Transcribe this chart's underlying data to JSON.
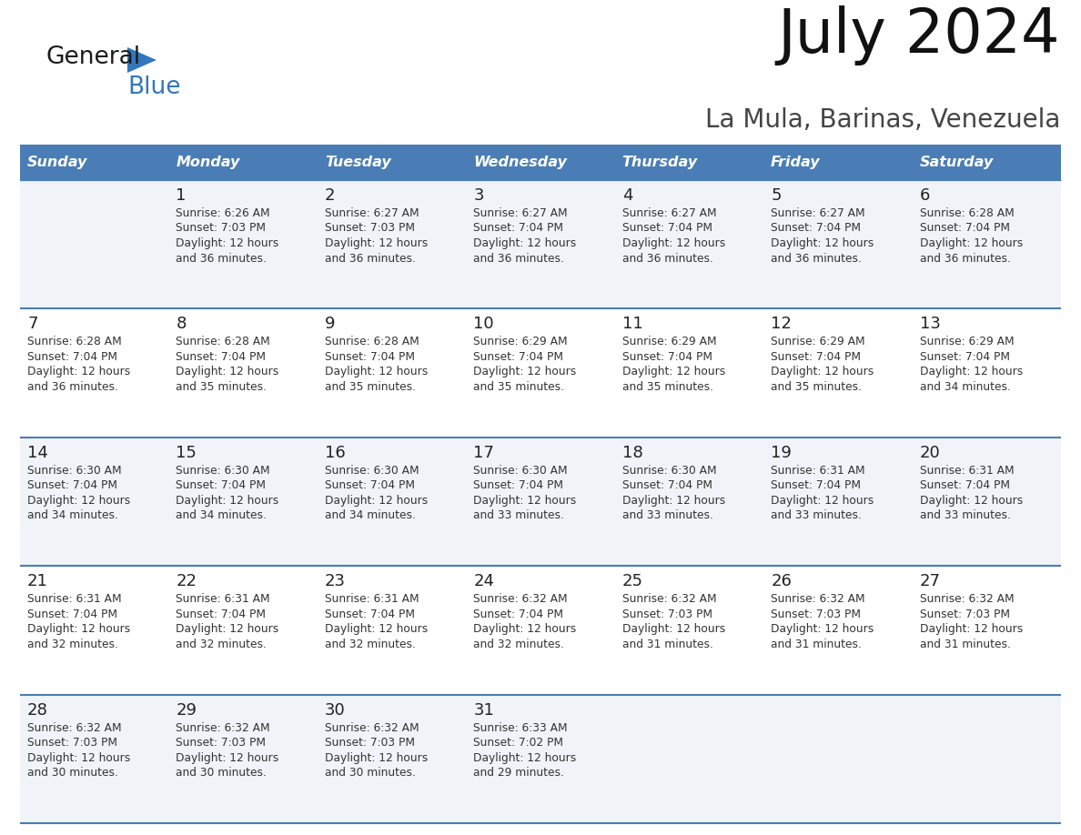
{
  "title": "July 2024",
  "subtitle": "La Mula, Barinas, Venezuela",
  "days_of_week": [
    "Sunday",
    "Monday",
    "Tuesday",
    "Wednesday",
    "Thursday",
    "Friday",
    "Saturday"
  ],
  "header_bg": "#4A7DB5",
  "header_text": "#FFFFFF",
  "row_bg_odd": "#F0F4F8",
  "row_bg_even": "#FFFFFF",
  "day_num_color": "#222222",
  "text_color": "#333333",
  "line_color": "#4A7DB5",
  "logo_general_color": "#1a1a1a",
  "logo_blue_color": "#3377BB",
  "calendar_data": [
    [
      {
        "day": "",
        "sunrise": "",
        "sunset": "",
        "daylight": ""
      },
      {
        "day": "1",
        "sunrise": "6:26 AM",
        "sunset": "7:03 PM",
        "daylight": "12 hours and 36 minutes."
      },
      {
        "day": "2",
        "sunrise": "6:27 AM",
        "sunset": "7:03 PM",
        "daylight": "12 hours and 36 minutes."
      },
      {
        "day": "3",
        "sunrise": "6:27 AM",
        "sunset": "7:04 PM",
        "daylight": "12 hours and 36 minutes."
      },
      {
        "day": "4",
        "sunrise": "6:27 AM",
        "sunset": "7:04 PM",
        "daylight": "12 hours and 36 minutes."
      },
      {
        "day": "5",
        "sunrise": "6:27 AM",
        "sunset": "7:04 PM",
        "daylight": "12 hours and 36 minutes."
      },
      {
        "day": "6",
        "sunrise": "6:28 AM",
        "sunset": "7:04 PM",
        "daylight": "12 hours and 36 minutes."
      }
    ],
    [
      {
        "day": "7",
        "sunrise": "6:28 AM",
        "sunset": "7:04 PM",
        "daylight": "12 hours and 36 minutes."
      },
      {
        "day": "8",
        "sunrise": "6:28 AM",
        "sunset": "7:04 PM",
        "daylight": "12 hours and 35 minutes."
      },
      {
        "day": "9",
        "sunrise": "6:28 AM",
        "sunset": "7:04 PM",
        "daylight": "12 hours and 35 minutes."
      },
      {
        "day": "10",
        "sunrise": "6:29 AM",
        "sunset": "7:04 PM",
        "daylight": "12 hours and 35 minutes."
      },
      {
        "day": "11",
        "sunrise": "6:29 AM",
        "sunset": "7:04 PM",
        "daylight": "12 hours and 35 minutes."
      },
      {
        "day": "12",
        "sunrise": "6:29 AM",
        "sunset": "7:04 PM",
        "daylight": "12 hours and 35 minutes."
      },
      {
        "day": "13",
        "sunrise": "6:29 AM",
        "sunset": "7:04 PM",
        "daylight": "12 hours and 34 minutes."
      }
    ],
    [
      {
        "day": "14",
        "sunrise": "6:30 AM",
        "sunset": "7:04 PM",
        "daylight": "12 hours and 34 minutes."
      },
      {
        "day": "15",
        "sunrise": "6:30 AM",
        "sunset": "7:04 PM",
        "daylight": "12 hours and 34 minutes."
      },
      {
        "day": "16",
        "sunrise": "6:30 AM",
        "sunset": "7:04 PM",
        "daylight": "12 hours and 34 minutes."
      },
      {
        "day": "17",
        "sunrise": "6:30 AM",
        "sunset": "7:04 PM",
        "daylight": "12 hours and 33 minutes."
      },
      {
        "day": "18",
        "sunrise": "6:30 AM",
        "sunset": "7:04 PM",
        "daylight": "12 hours and 33 minutes."
      },
      {
        "day": "19",
        "sunrise": "6:31 AM",
        "sunset": "7:04 PM",
        "daylight": "12 hours and 33 minutes."
      },
      {
        "day": "20",
        "sunrise": "6:31 AM",
        "sunset": "7:04 PM",
        "daylight": "12 hours and 33 minutes."
      }
    ],
    [
      {
        "day": "21",
        "sunrise": "6:31 AM",
        "sunset": "7:04 PM",
        "daylight": "12 hours and 32 minutes."
      },
      {
        "day": "22",
        "sunrise": "6:31 AM",
        "sunset": "7:04 PM",
        "daylight": "12 hours and 32 minutes."
      },
      {
        "day": "23",
        "sunrise": "6:31 AM",
        "sunset": "7:04 PM",
        "daylight": "12 hours and 32 minutes."
      },
      {
        "day": "24",
        "sunrise": "6:32 AM",
        "sunset": "7:04 PM",
        "daylight": "12 hours and 32 minutes."
      },
      {
        "day": "25",
        "sunrise": "6:32 AM",
        "sunset": "7:03 PM",
        "daylight": "12 hours and 31 minutes."
      },
      {
        "day": "26",
        "sunrise": "6:32 AM",
        "sunset": "7:03 PM",
        "daylight": "12 hours and 31 minutes."
      },
      {
        "day": "27",
        "sunrise": "6:32 AM",
        "sunset": "7:03 PM",
        "daylight": "12 hours and 31 minutes."
      }
    ],
    [
      {
        "day": "28",
        "sunrise": "6:32 AM",
        "sunset": "7:03 PM",
        "daylight": "12 hours and 30 minutes."
      },
      {
        "day": "29",
        "sunrise": "6:32 AM",
        "sunset": "7:03 PM",
        "daylight": "12 hours and 30 minutes."
      },
      {
        "day": "30",
        "sunrise": "6:32 AM",
        "sunset": "7:03 PM",
        "daylight": "12 hours and 30 minutes."
      },
      {
        "day": "31",
        "sunrise": "6:33 AM",
        "sunset": "7:02 PM",
        "daylight": "12 hours and 29 minutes."
      },
      {
        "day": "",
        "sunrise": "",
        "sunset": "",
        "daylight": ""
      },
      {
        "day": "",
        "sunrise": "",
        "sunset": "",
        "daylight": ""
      },
      {
        "day": "",
        "sunrise": "",
        "sunset": "",
        "daylight": ""
      }
    ]
  ]
}
